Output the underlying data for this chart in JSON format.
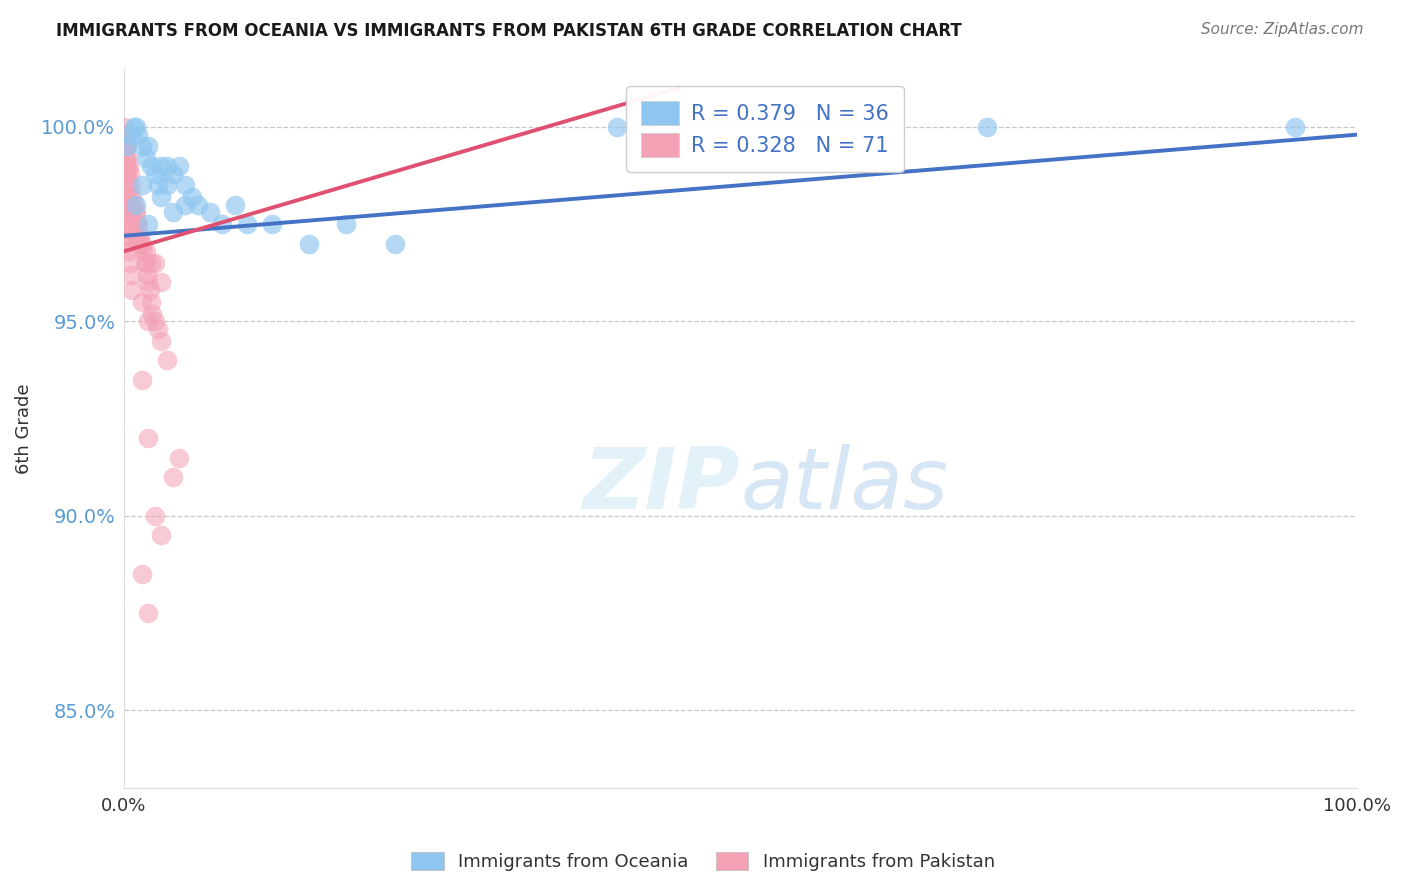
{
  "title": "IMMIGRANTS FROM OCEANIA VS IMMIGRANTS FROM PAKISTAN 6TH GRADE CORRELATION CHART",
  "source": "Source: ZipAtlas.com",
  "ylabel": "6th Grade",
  "xlim": [
    0.0,
    100.0
  ],
  "ylim": [
    83.0,
    101.5
  ],
  "yticks": [
    85.0,
    90.0,
    95.0,
    100.0
  ],
  "ytick_labels": [
    "85.0%",
    "90.0%",
    "95.0%",
    "100.0%"
  ],
  "color_blue": "#8EC6F0",
  "color_pink": "#F4A0B5",
  "line_color_blue": "#4472C4",
  "line_color_pink": "#E05070",
  "oceania_x": [
    0.3,
    0.5,
    0.8,
    1.0,
    1.2,
    1.5,
    1.8,
    2.0,
    2.2,
    2.5,
    2.8,
    3.0,
    3.5,
    4.0,
    4.5,
    5.0,
    5.5,
    6.0,
    7.0,
    8.0,
    9.0,
    10.0,
    12.0,
    15.0,
    18.0,
    22.0,
    40.0,
    70.0,
    95.0,
    1.0,
    1.5,
    2.0,
    3.0,
    3.5,
    4.0,
    5.0
  ],
  "oceania_y": [
    99.5,
    99.8,
    100.0,
    100.0,
    99.8,
    99.5,
    99.2,
    99.5,
    99.0,
    98.8,
    98.5,
    99.0,
    98.5,
    98.8,
    99.0,
    98.5,
    98.2,
    98.0,
    97.8,
    97.5,
    98.0,
    97.5,
    97.5,
    97.0,
    97.5,
    97.0,
    100.0,
    100.0,
    100.0,
    98.0,
    98.5,
    97.5,
    98.2,
    99.0,
    97.8,
    98.0
  ],
  "pakistan_x": [
    0.05,
    0.1,
    0.15,
    0.2,
    0.25,
    0.3,
    0.4,
    0.5,
    0.6,
    0.7,
    0.8,
    0.9,
    1.0,
    1.1,
    1.2,
    1.3,
    1.4,
    1.5,
    1.6,
    1.7,
    1.8,
    1.9,
    2.0,
    2.1,
    2.2,
    2.3,
    2.5,
    2.8,
    3.0,
    3.5,
    0.05,
    0.1,
    0.15,
    0.2,
    0.25,
    0.3,
    0.4,
    0.5,
    0.6,
    0.7,
    0.05,
    0.1,
    0.15,
    0.2,
    0.3,
    0.4,
    0.5,
    0.05,
    0.1,
    0.2,
    0.3,
    0.05,
    0.1,
    0.2,
    1.5,
    2.0,
    4.5,
    2.5,
    3.0,
    1.8,
    2.2,
    1.5,
    2.0,
    1.0,
    0.8,
    1.2,
    1.5,
    2.0,
    2.5,
    3.0,
    4.0
  ],
  "pakistan_y": [
    100.0,
    99.8,
    99.5,
    99.5,
    99.2,
    99.0,
    99.0,
    98.8,
    98.5,
    98.2,
    98.0,
    97.8,
    97.8,
    97.5,
    97.5,
    97.2,
    97.0,
    97.0,
    96.8,
    96.5,
    96.5,
    96.2,
    96.0,
    95.8,
    95.5,
    95.2,
    95.0,
    94.8,
    94.5,
    94.0,
    98.5,
    98.2,
    98.0,
    97.8,
    97.5,
    97.2,
    96.8,
    96.5,
    96.2,
    95.8,
    99.5,
    99.2,
    99.0,
    98.8,
    98.5,
    98.2,
    97.8,
    99.8,
    99.5,
    99.2,
    98.8,
    97.5,
    97.2,
    97.0,
    93.5,
    92.0,
    91.5,
    96.5,
    96.0,
    96.8,
    96.5,
    95.5,
    95.0,
    97.2,
    97.5,
    97.0,
    88.5,
    87.5,
    90.0,
    89.5,
    91.0
  ],
  "blue_trend_x": [
    0,
    100
  ],
  "blue_trend_y": [
    97.2,
    99.8
  ],
  "pink_trend_x": [
    0,
    45
  ],
  "pink_trend_y": [
    96.8,
    101.0
  ],
  "legend_r1": "R = 0.379",
  "legend_n1": "N = 36",
  "legend_r2": "R = 0.328",
  "legend_n2": "N = 71"
}
